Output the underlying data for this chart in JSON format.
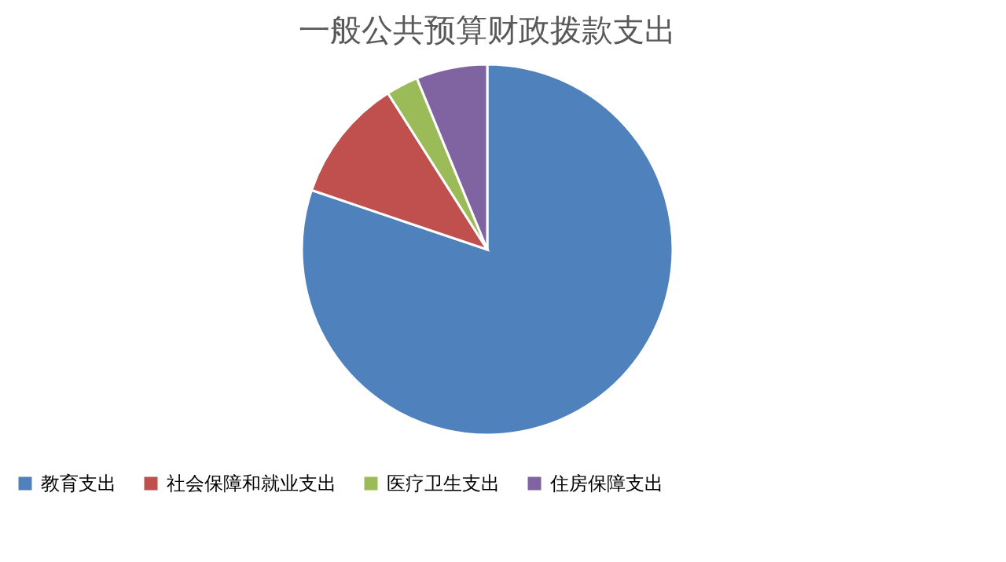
{
  "chart_data": {
    "type": "pie",
    "title": "一般公共预算财政拨款支出",
    "categories": [
      "教育支出",
      "社会保障和就业支出",
      "医疗卫生支出",
      "住房保障支出"
    ],
    "values": [
      80.2,
      10.8,
      2.8,
      6.2
    ],
    "colors": [
      "#4f81bd",
      "#c0504d",
      "#9bbb59",
      "#8064a2"
    ],
    "legend": "bottom"
  }
}
